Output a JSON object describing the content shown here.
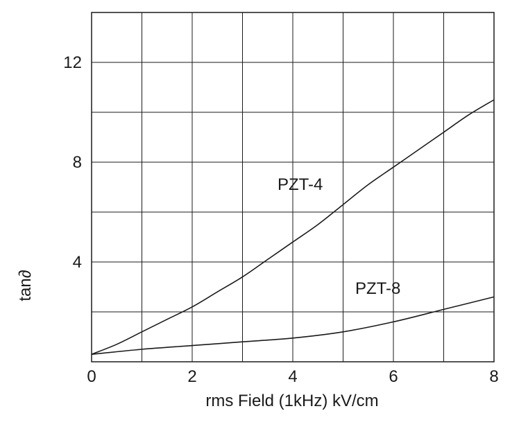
{
  "chart_data": {
    "type": "line",
    "title": "",
    "xlabel": "rms Field (1kHz)  kV/cm",
    "ylabel": "tan∂",
    "xlim": [
      0,
      8
    ],
    "ylim": [
      0,
      14
    ],
    "x_ticks": [
      0,
      2,
      4,
      6,
      8
    ],
    "y_ticks": [
      4,
      8,
      12
    ],
    "x_tick_labels": [
      "0",
      "2",
      "4",
      "6",
      "8"
    ],
    "y_tick_labels": [
      "4",
      "8",
      "12"
    ],
    "grid": true,
    "series": [
      {
        "name": "PZT-4",
        "x": [
          0,
          0.5,
          1,
          1.5,
          2,
          2.5,
          3,
          3.5,
          4,
          4.5,
          5,
          5.5,
          6,
          6.5,
          7,
          7.5,
          8
        ],
        "y": [
          0.3,
          0.7,
          1.2,
          1.7,
          2.2,
          2.8,
          3.4,
          4.1,
          4.8,
          5.5,
          6.3,
          7.1,
          7.8,
          8.5,
          9.2,
          9.9,
          10.5
        ]
      },
      {
        "name": "PZT-8",
        "x": [
          0,
          1,
          2,
          3,
          4,
          5,
          6,
          7,
          8
        ],
        "y": [
          0.3,
          0.5,
          0.65,
          0.8,
          0.95,
          1.2,
          1.6,
          2.1,
          2.6
        ]
      }
    ]
  }
}
